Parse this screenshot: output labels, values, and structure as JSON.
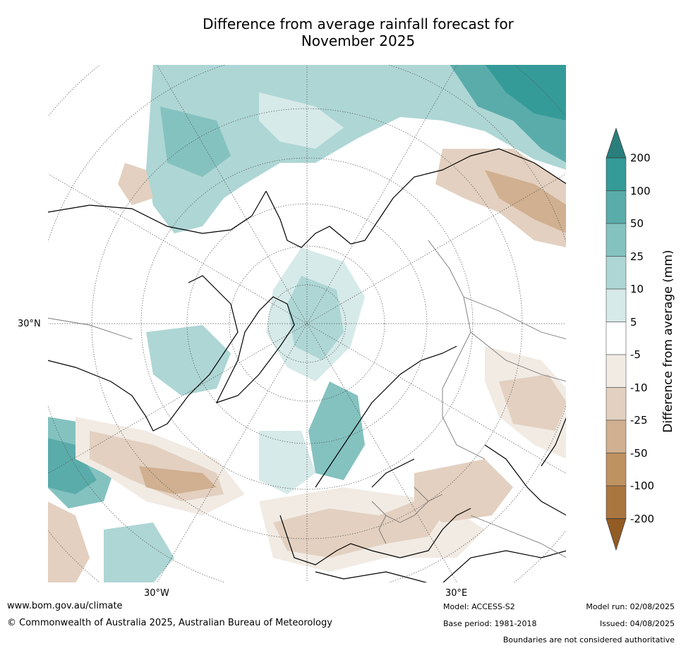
{
  "title_line1": "Difference from average rainfall forecast for",
  "title_line2": "November 2025",
  "map": {
    "lat_label": "30°N",
    "lon_labels": [
      "30°W",
      "30°E"
    ]
  },
  "legend": {
    "title": "Difference from average (mm)",
    "ticks": [
      "200",
      "100",
      "50",
      "25",
      "10",
      "5",
      "-5",
      "-10",
      "-25",
      "-50",
      "-100",
      "-200"
    ],
    "colors": [
      "#2a7f7d",
      "#359b98",
      "#5aacaa",
      "#84c2c0",
      "#aed6d5",
      "#d6eae9",
      "#ffffff",
      "#f1ebe4",
      "#e3d0c0",
      "#d0b090",
      "#bf9262",
      "#aa7640",
      "#935c25"
    ]
  },
  "footer": {
    "website": "www.bom.gov.au/climate",
    "copyright": "© Commonwealth of Australia 2025, Australian Bureau of Meteorology",
    "model": "Model: ACCESS-S2",
    "base_period": "Base period: 1981-2018",
    "model_run": "Model run: 02/08/2025",
    "issued": "Issued: 04/08/2025",
    "disclaimer": "Boundaries are not considered authoritative"
  }
}
